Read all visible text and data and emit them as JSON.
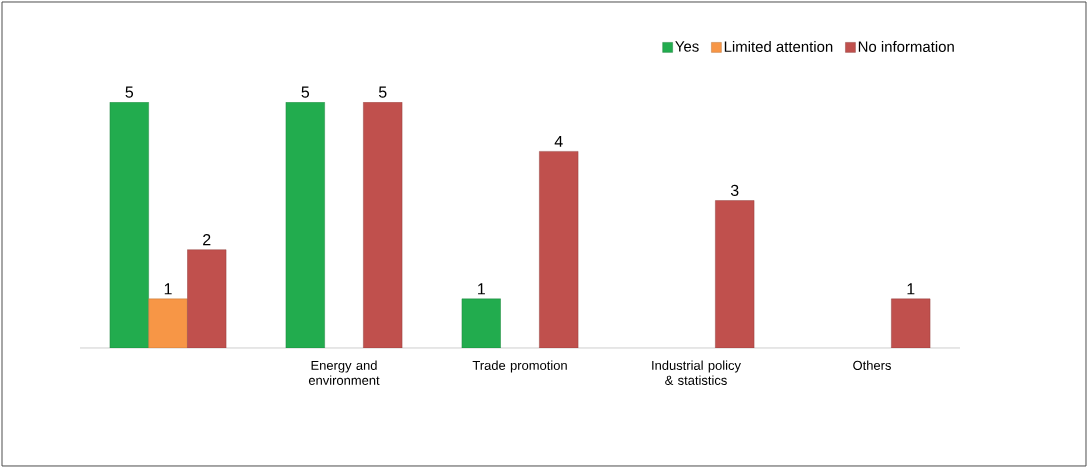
{
  "chart_data": {
    "type": "bar",
    "categories": [
      null,
      "Energy and environment",
      "Trade promotion",
      "Industrial policy & statistics",
      "Others"
    ],
    "series": [
      {
        "name": "Yes",
        "color": "#22ac4e",
        "values": [
          5,
          5,
          1,
          null,
          null
        ]
      },
      {
        "name": "Limited attention",
        "color": "#f79646",
        "values": [
          1,
          null,
          null,
          null,
          null
        ]
      },
      {
        "name": "No information",
        "color": "#c0504d",
        "values": [
          2,
          5,
          4,
          3,
          1
        ]
      }
    ],
    "data_labels": true,
    "legend": "top right"
  }
}
